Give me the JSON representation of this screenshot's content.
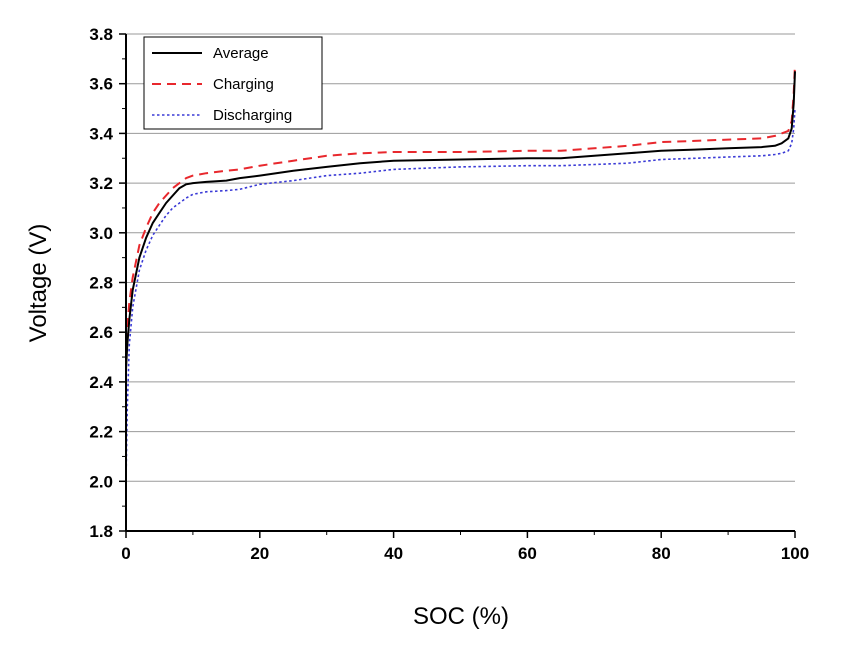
{
  "chart_data": {
    "type": "line",
    "title": "",
    "xlabel": "SOC (%)",
    "ylabel": "Voltage (V)",
    "xlim": [
      0,
      100
    ],
    "ylim": [
      1.8,
      3.8
    ],
    "xticks": [
      0,
      20,
      40,
      60,
      80,
      100
    ],
    "xtick_labels": [
      "0",
      "20",
      "40",
      "60",
      "80",
      "100"
    ],
    "yticks": [
      1.8,
      2.0,
      2.2,
      2.4,
      2.6,
      2.8,
      3.0,
      3.2,
      3.4,
      3.6,
      3.8
    ],
    "ytick_labels": [
      "1.8",
      "2.0",
      "2.2",
      "2.4",
      "2.6",
      "2.8",
      "3.0",
      "3.2",
      "3.4",
      "3.6",
      "3.8"
    ],
    "grid": "horizontal",
    "legend_position": "top-left",
    "series": [
      {
        "name": "Average",
        "color": "#000000",
        "style": "solid",
        "x": [
          0,
          0.2,
          0.5,
          1,
          2,
          3,
          4,
          5,
          6,
          7,
          8,
          9,
          10,
          12,
          15,
          17,
          20,
          25,
          30,
          35,
          40,
          50,
          60,
          65,
          70,
          75,
          80,
          85,
          90,
          95,
          97,
          98,
          99,
          99.5,
          99.8,
          100
        ],
        "y": [
          2.45,
          2.55,
          2.65,
          2.77,
          2.9,
          2.98,
          3.04,
          3.08,
          3.12,
          3.15,
          3.18,
          3.195,
          3.2,
          3.205,
          3.21,
          3.22,
          3.23,
          3.25,
          3.265,
          3.28,
          3.29,
          3.295,
          3.3,
          3.3,
          3.31,
          3.32,
          3.33,
          3.335,
          3.34,
          3.345,
          3.35,
          3.36,
          3.38,
          3.42,
          3.52,
          3.65
        ]
      },
      {
        "name": "Charging",
        "color": "#e8282d",
        "style": "dashed",
        "x": [
          0,
          0.2,
          0.5,
          1,
          2,
          3,
          4,
          5,
          6,
          7,
          8,
          9,
          10,
          12,
          15,
          17,
          20,
          25,
          30,
          35,
          40,
          50,
          60,
          65,
          70,
          75,
          80,
          85,
          90,
          95,
          97,
          98,
          99,
          99.5,
          99.8,
          100
        ],
        "y": [
          2.5,
          2.62,
          2.72,
          2.82,
          2.95,
          3.02,
          3.08,
          3.12,
          3.15,
          3.18,
          3.2,
          3.22,
          3.23,
          3.24,
          3.25,
          3.255,
          3.27,
          3.29,
          3.31,
          3.32,
          3.325,
          3.325,
          3.33,
          3.33,
          3.34,
          3.35,
          3.365,
          3.37,
          3.375,
          3.38,
          3.39,
          3.4,
          3.41,
          3.45,
          3.56,
          3.68
        ]
      },
      {
        "name": "Discharging",
        "color": "#3a3ad6",
        "style": "dotted",
        "x": [
          0,
          0.2,
          0.5,
          1,
          2,
          3,
          4,
          5,
          6,
          7,
          8,
          9,
          10,
          12,
          15,
          17,
          20,
          25,
          30,
          35,
          40,
          50,
          60,
          65,
          70,
          75,
          80,
          85,
          90,
          95,
          97,
          98,
          99,
          99.5,
          99.8,
          100
        ],
        "y": [
          2.0,
          2.3,
          2.55,
          2.7,
          2.85,
          2.93,
          2.99,
          3.03,
          3.07,
          3.1,
          3.12,
          3.14,
          3.155,
          3.165,
          3.17,
          3.175,
          3.195,
          3.21,
          3.23,
          3.24,
          3.255,
          3.265,
          3.27,
          3.27,
          3.275,
          3.28,
          3.295,
          3.3,
          3.305,
          3.31,
          3.315,
          3.32,
          3.33,
          3.36,
          3.42,
          3.5
        ]
      }
    ]
  }
}
